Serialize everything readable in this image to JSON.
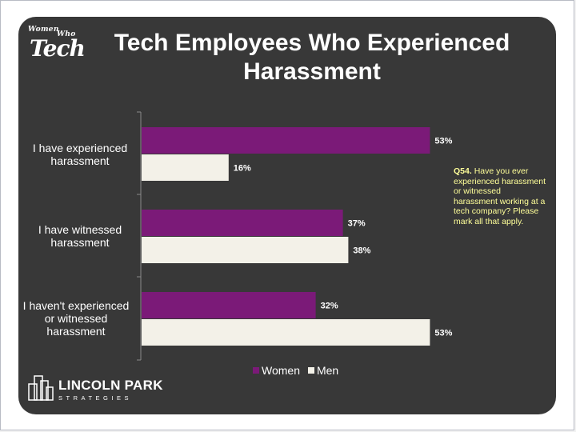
{
  "logo_top": {
    "small": "Women",
    "small2": "Who",
    "big": "Tech"
  },
  "title": "Tech Employees Who Experienced Harassment",
  "note": {
    "bold": "Q54.",
    "text": "Have you ever experienced harassment or witnessed harassment working at a tech company? Please mark all that apply."
  },
  "footer_logo": {
    "name": "LINCOLN PARK",
    "sub": "STRATEGIES"
  },
  "chart_data": {
    "type": "bar",
    "orientation": "horizontal",
    "categories": [
      "I have experienced harassment",
      "I have witnessed harassment",
      "I haven't experienced or witnessed harassment"
    ],
    "series": [
      {
        "name": "Women",
        "values": [
          53,
          37,
          32
        ],
        "color": "#7b1a78"
      },
      {
        "name": "Men",
        "values": [
          16,
          38,
          53
        ],
        "color": "#f3f1e8"
      }
    ],
    "value_suffix": "%",
    "xlim": [
      0,
      60
    ],
    "grid": false,
    "legend": "bottom"
  }
}
